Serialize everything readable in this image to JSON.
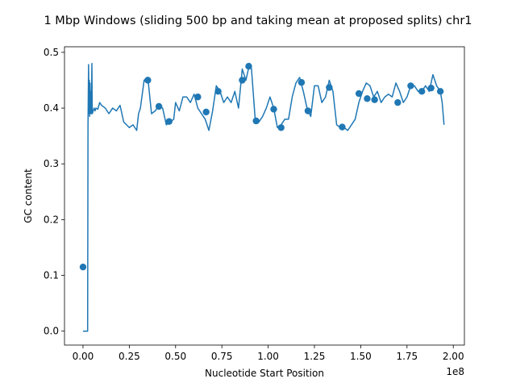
{
  "chart_data": {
    "type": "line",
    "title": "1 Mbp Windows (sliding 500 bp and taking mean at proposed splits) chr1",
    "xlabel": "Nucleotide Start Position",
    "ylabel": "GC content",
    "x_offset_label": "1e8",
    "xlim": [
      -0.1,
      2.06
    ],
    "ylim": [
      -0.025,
      0.51
    ],
    "xticks": [
      0.0,
      0.25,
      0.5,
      0.75,
      1.0,
      1.25,
      1.5,
      1.75,
      2.0
    ],
    "xtick_labels": [
      "0.00",
      "0.25",
      "0.50",
      "0.75",
      "1.00",
      "1.25",
      "1.50",
      "1.75",
      "2.00"
    ],
    "yticks": [
      0.0,
      0.1,
      0.2,
      0.3,
      0.4,
      0.5
    ],
    "ytick_labels": [
      "0.0",
      "0.1",
      "0.2",
      "0.3",
      "0.4",
      "0.5"
    ],
    "grid": false,
    "legend": "none",
    "series_color": "#1f77b4",
    "line": {
      "x": [
        0.0,
        0.02,
        0.025,
        0.027,
        0.03,
        0.032,
        0.034,
        0.036,
        0.038,
        0.04,
        0.042,
        0.045,
        0.048,
        0.05,
        0.055,
        0.06,
        0.065,
        0.07,
        0.08,
        0.09,
        0.1,
        0.12,
        0.14,
        0.16,
        0.18,
        0.2,
        0.22,
        0.25,
        0.27,
        0.29,
        0.3,
        0.31,
        0.33,
        0.35,
        0.37,
        0.39,
        0.41,
        0.43,
        0.45,
        0.47,
        0.49,
        0.5,
        0.52,
        0.54,
        0.56,
        0.58,
        0.6,
        0.62,
        0.64,
        0.66,
        0.68,
        0.7,
        0.72,
        0.74,
        0.76,
        0.78,
        0.8,
        0.82,
        0.84,
        0.86,
        0.88,
        0.9,
        0.91,
        0.93,
        0.95,
        0.97,
        0.99,
        1.01,
        1.03,
        1.05,
        1.07,
        1.09,
        1.11,
        1.13,
        1.15,
        1.17,
        1.19,
        1.21,
        1.23,
        1.25,
        1.27,
        1.29,
        1.31,
        1.33,
        1.35,
        1.37,
        1.39,
        1.41,
        1.43,
        1.45,
        1.47,
        1.49,
        1.51,
        1.53,
        1.55,
        1.57,
        1.59,
        1.61,
        1.63,
        1.65,
        1.67,
        1.69,
        1.71,
        1.73,
        1.75,
        1.77,
        1.79,
        1.81,
        1.83,
        1.85,
        1.87,
        1.89,
        1.91,
        1.93,
        1.94,
        1.95
      ],
      "y": [
        0.0,
        0.0,
        0.0,
        0.37,
        0.478,
        0.39,
        0.45,
        0.385,
        0.445,
        0.39,
        0.43,
        0.39,
        0.48,
        0.39,
        0.395,
        0.4,
        0.395,
        0.4,
        0.398,
        0.41,
        0.405,
        0.4,
        0.39,
        0.4,
        0.395,
        0.405,
        0.375,
        0.365,
        0.37,
        0.36,
        0.39,
        0.4,
        0.45,
        0.455,
        0.39,
        0.395,
        0.405,
        0.4,
        0.37,
        0.375,
        0.38,
        0.41,
        0.395,
        0.42,
        0.42,
        0.41,
        0.425,
        0.4,
        0.39,
        0.38,
        0.36,
        0.395,
        0.44,
        0.43,
        0.41,
        0.42,
        0.41,
        0.43,
        0.4,
        0.47,
        0.45,
        0.48,
        0.47,
        0.38,
        0.375,
        0.385,
        0.4,
        0.42,
        0.4,
        0.365,
        0.37,
        0.38,
        0.38,
        0.42,
        0.445,
        0.455,
        0.43,
        0.4,
        0.385,
        0.44,
        0.44,
        0.41,
        0.42,
        0.45,
        0.43,
        0.37,
        0.365,
        0.365,
        0.36,
        0.37,
        0.38,
        0.41,
        0.43,
        0.445,
        0.44,
        0.42,
        0.43,
        0.41,
        0.42,
        0.425,
        0.42,
        0.445,
        0.43,
        0.41,
        0.42,
        0.44,
        0.44,
        0.43,
        0.43,
        0.44,
        0.43,
        0.46,
        0.44,
        0.43,
        0.41,
        0.37
      ]
    },
    "markers": {
      "x": [
        0.0,
        0.35,
        0.41,
        0.465,
        0.62,
        0.665,
        0.73,
        0.86,
        0.895,
        0.935,
        1.03,
        1.07,
        1.18,
        1.215,
        1.33,
        1.4,
        1.49,
        1.535,
        1.575,
        1.7,
        1.77,
        1.83,
        1.88,
        1.93
      ],
      "y": [
        0.115,
        0.45,
        0.403,
        0.376,
        0.42,
        0.393,
        0.43,
        0.45,
        0.475,
        0.377,
        0.398,
        0.365,
        0.446,
        0.395,
        0.437,
        0.366,
        0.426,
        0.417,
        0.415,
        0.41,
        0.44,
        0.43,
        0.436,
        0.43
      ]
    }
  }
}
